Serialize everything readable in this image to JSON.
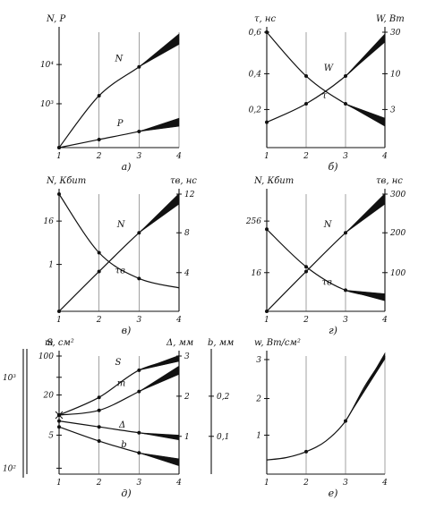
{
  "chart_data": [
    {
      "id": "a",
      "type": "line",
      "caption": "а)",
      "xlabel": "",
      "x_ticks": [
        "1",
        "2",
        "3",
        "4"
      ],
      "y_left_label": "N, P",
      "y_left_ticks": [
        "10³",
        "10⁴"
      ],
      "y_right_label": "",
      "y_right_ticks": [],
      "series": [
        {
          "name": "N",
          "x": [
            1,
            2,
            3,
            4
          ],
          "y": [
            1,
            0.55,
            0.3,
            0.06
          ],
          "band_from": 3,
          "band_to_width": 0.09
        },
        {
          "name": "P",
          "x": [
            1,
            2,
            3,
            4
          ],
          "y": [
            1,
            0.93,
            0.86,
            0.78
          ],
          "band_from": 3,
          "band_to_width": 0.07
        }
      ]
    },
    {
      "id": "b",
      "type": "line",
      "caption": "б)",
      "x_ticks": [
        "1",
        "2",
        "3",
        "4"
      ],
      "y_left_label": "τ, нс",
      "y_left_ticks": [
        "0,2",
        "0,4",
        "0,6"
      ],
      "y_right_label": "W, Вт",
      "y_right_ticks": [
        "3",
        "10",
        "30"
      ],
      "series": [
        {
          "name": "τ",
          "x": [
            1,
            2,
            3,
            4
          ],
          "y": [
            0.0,
            0.38,
            0.62,
            0.78
          ],
          "band_from": 3,
          "band_to_width": 0.07
        },
        {
          "name": "W",
          "x": [
            1,
            2,
            3,
            4
          ],
          "y": [
            0.78,
            0.62,
            0.38,
            0.05
          ],
          "band_from": 3,
          "band_to_width": 0.07
        }
      ]
    },
    {
      "id": "c",
      "type": "line",
      "caption": "в)",
      "x_ticks": [
        "1",
        "2",
        "3",
        "4"
      ],
      "y_left_label": "N, Кбит",
      "y_left_ticks": [
        "1",
        "16"
      ],
      "y_right_label": "τв, нс",
      "y_right_ticks": [
        "4",
        "8",
        "12"
      ],
      "series": [
        {
          "name": "τв",
          "x": [
            1,
            2,
            3,
            4
          ],
          "y": [
            0.0,
            0.5,
            0.72,
            0.8
          ],
          "band_from": 4,
          "band_to_width": 0
        },
        {
          "name": "N",
          "x": [
            1,
            2,
            3,
            4
          ],
          "y": [
            1.0,
            0.66,
            0.33,
            0.04
          ],
          "band_from": 3,
          "band_to_width": 0.09
        }
      ]
    },
    {
      "id": "d",
      "type": "line",
      "caption": "г)",
      "x_ticks": [
        "1",
        "2",
        "3",
        "4"
      ],
      "y_left_label": "N, Кбит",
      "y_left_ticks": [
        "16",
        "256"
      ],
      "y_right_label": "τв, нс",
      "y_right_ticks": [
        "100",
        "200",
        "300"
      ],
      "series": [
        {
          "name": "τв",
          "x": [
            1,
            2,
            3,
            4
          ],
          "y": [
            0.3,
            0.62,
            0.82,
            0.88
          ],
          "band_from": 3,
          "band_to_width": 0.06
        },
        {
          "name": "N",
          "x": [
            1,
            2,
            3,
            4
          ],
          "y": [
            1.0,
            0.66,
            0.33,
            0.04
          ],
          "band_from": 3,
          "band_to_width": 0.09
        }
      ]
    },
    {
      "id": "e",
      "type": "line",
      "caption": "д)",
      "x_ticks": [
        "1",
        "2",
        "3",
        "4"
      ],
      "y_left_label": "S, см²",
      "y_left_ticks": [
        "10³",
        "10²"
      ],
      "y_left2_label": "m",
      "y_left2_ticks": [
        "100",
        "20",
        "5"
      ],
      "y_right_label": "Δ, мм",
      "y_right_ticks": [
        "1",
        "2",
        "3"
      ],
      "y_right2_label": "b, мм",
      "y_right2_ticks": [
        "0,1",
        "0,2"
      ],
      "series": [
        {
          "name": "S",
          "x": [
            1,
            2,
            3,
            4
          ],
          "y": [
            0.5,
            0.35,
            0.12,
            0.02
          ],
          "band_from": 3,
          "band_to_width": 0.05
        },
        {
          "name": "m",
          "x": [
            1,
            2,
            3,
            4
          ],
          "y": [
            0.5,
            0.46,
            0.3,
            0.12
          ],
          "band_from": 3,
          "band_to_width": 0.07
        },
        {
          "name": "Δ",
          "x": [
            1,
            2,
            3,
            4
          ],
          "y": [
            0.55,
            0.6,
            0.65,
            0.69
          ],
          "band_from": 3,
          "band_to_width": 0.04
        },
        {
          "name": "b",
          "x": [
            1,
            2,
            3,
            4
          ],
          "y": [
            0.6,
            0.72,
            0.82,
            0.9
          ],
          "band_from": 3,
          "band_to_width": 0.06
        }
      ]
    },
    {
      "id": "f",
      "type": "line",
      "caption": "е)",
      "x_ticks": [
        "1",
        "2",
        "3",
        "4"
      ],
      "y_left_label": "w, Вт/см²",
      "y_left_ticks": [
        "1",
        "2",
        "3"
      ],
      "series": [
        {
          "name": "",
          "x": [
            1,
            1.5,
            2,
            2.5,
            3,
            3.5,
            4
          ],
          "y": [
            0.88,
            0.86,
            0.81,
            0.72,
            0.55,
            0.25,
            0.0
          ],
          "band_from": 3,
          "band_to_width": 0.05
        }
      ]
    }
  ]
}
